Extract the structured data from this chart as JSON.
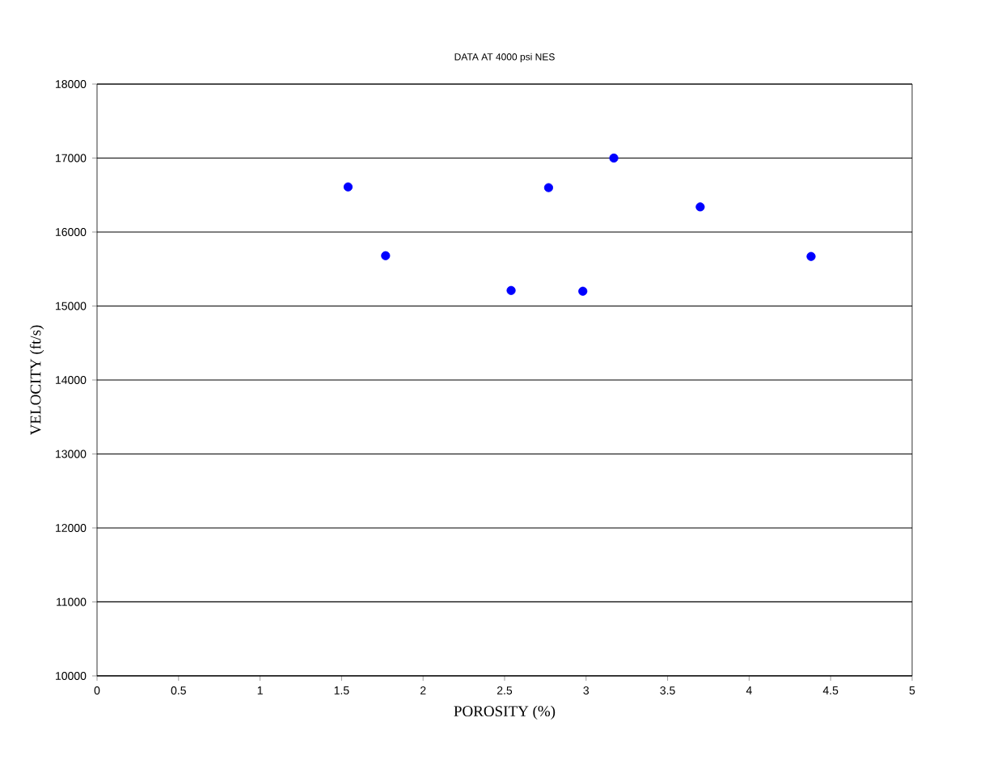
{
  "chart_data": {
    "type": "scatter",
    "title": "DATA AT 4000 psi NES",
    "xlabel": "POROSITY (%)",
    "ylabel": "VELOCITY (ft/s)",
    "x": [
      1.54,
      1.77,
      2.54,
      2.77,
      2.98,
      3.17,
      3.7,
      4.38
    ],
    "values": [
      16610,
      15680,
      15210,
      16600,
      15200,
      17000,
      16340,
      15670
    ],
    "color": "#0000ff",
    "marker": "circle",
    "xlim": [
      0,
      5
    ],
    "xticks": [
      0,
      0.5,
      1,
      1.5,
      2,
      2.5,
      3,
      3.5,
      4,
      4.5,
      5
    ],
    "ylim": [
      10000,
      18000
    ],
    "yticks": [
      10000,
      11000,
      12000,
      13000,
      14000,
      15000,
      16000,
      17000,
      18000
    ],
    "grid": "y"
  }
}
